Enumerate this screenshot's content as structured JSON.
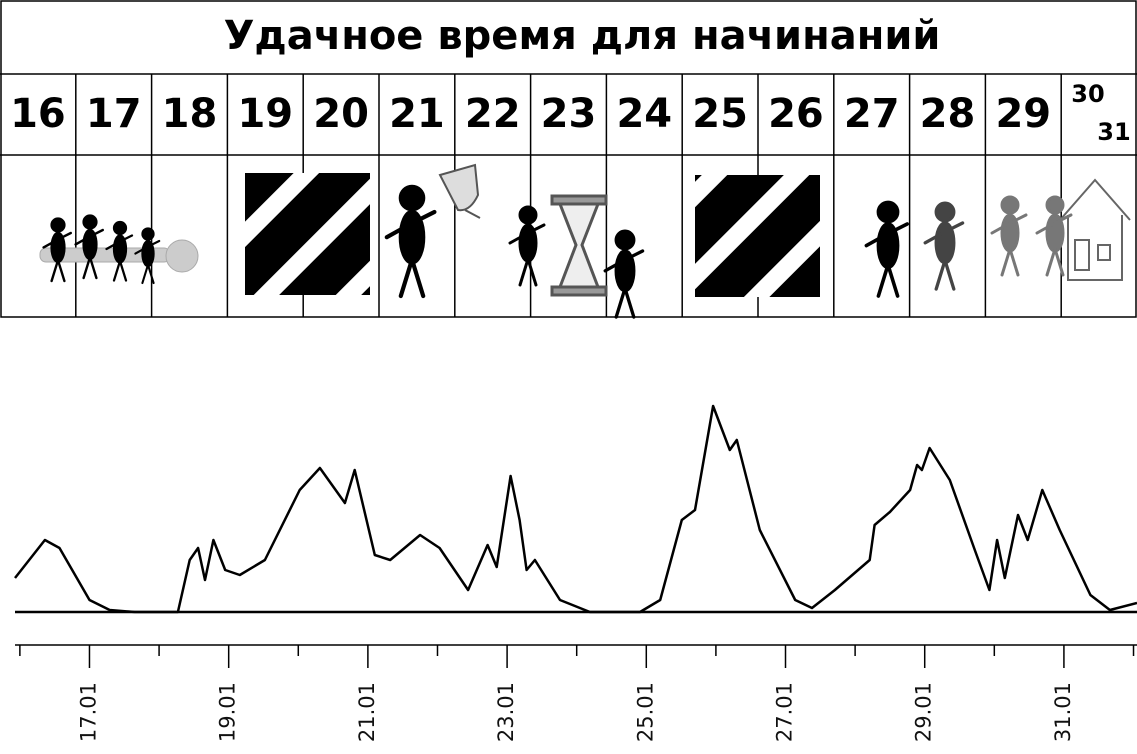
{
  "header": {
    "title": "Удачное время для начинаний",
    "days": [
      "16",
      "17",
      "18",
      "19",
      "20",
      "21",
      "22",
      "23",
      "24",
      "25",
      "26",
      "27",
      "28",
      "29",
      "30",
      "31"
    ]
  },
  "chart_data": {
    "type": "line",
    "color": "#000000",
    "x": [
      15.93,
      16.36,
      16.57,
      17.0,
      17.29,
      17.65,
      18.27,
      18.44,
      18.56,
      18.66,
      18.78,
      18.95,
      19.16,
      19.52,
      20.02,
      20.31,
      20.67,
      20.81,
      21.1,
      21.32,
      21.75,
      22.03,
      22.44,
      22.72,
      22.85,
      23.05,
      23.18,
      23.28,
      23.4,
      23.76,
      24.19,
      24.91,
      25.2,
      25.51,
      25.7,
      25.96,
      26.09,
      26.2,
      26.3,
      26.63,
      27.14,
      27.38,
      27.71,
      28.21,
      28.28,
      28.5,
      28.79,
      28.89,
      28.96,
      29.07,
      29.36,
      29.72,
      29.93,
      30.04,
      30.15,
      30.34,
      30.48,
      30.69,
      30.94,
      31.38,
      31.66,
      32.05
    ],
    "values": [
      17,
      36,
      32,
      6,
      1,
      0,
      0,
      26,
      32,
      16,
      36,
      21,
      18.5,
      26,
      61,
      72,
      54.5,
      71,
      28.5,
      26,
      38.5,
      32,
      11,
      33.5,
      22.5,
      68,
      46,
      21,
      26,
      6,
      0,
      0,
      6,
      46,
      51,
      103,
      91,
      81,
      86,
      41,
      6,
      2,
      11,
      26,
      43.5,
      50,
      61,
      73.5,
      71,
      82,
      66,
      31,
      11,
      36,
      17,
      48.5,
      36,
      61,
      41,
      8.5,
      1,
      4.5
    ],
    "xlim": [
      15.93,
      32.05
    ],
    "ylim": [
      0,
      140
    ],
    "xticks": [
      {
        "value": 17,
        "label": "17.01"
      },
      {
        "value": 19,
        "label": "19.01"
      },
      {
        "value": 21,
        "label": "21.01"
      },
      {
        "value": 23,
        "label": "23.01"
      },
      {
        "value": 25,
        "label": "25.01"
      },
      {
        "value": 27,
        "label": "27.01"
      },
      {
        "value": 29,
        "label": "29.01"
      },
      {
        "value": 31,
        "label": "31.01"
      }
    ],
    "xticks_minor": [
      16,
      18,
      20,
      22,
      24,
      26,
      28,
      30,
      32
    ]
  }
}
